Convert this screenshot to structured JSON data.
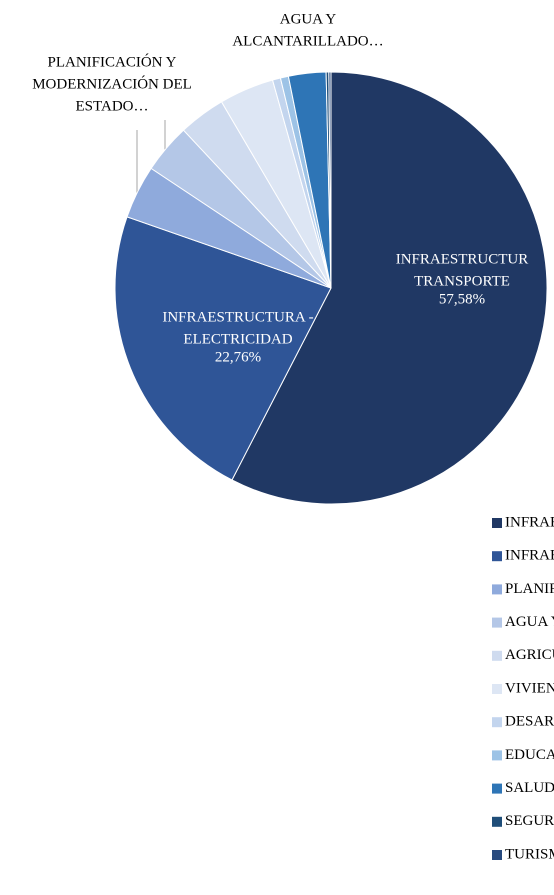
{
  "chart_data": {
    "type": "pie",
    "categories": [
      "INFRAESTRUCTURA-TRANSPORTE",
      "INFRAESTRUCTURA - ELECTRICIDAD",
      "PLANIFICACIÓN Y MODERNIZACIÓN DEL ESTADO",
      "AGUA Y ALCANTARILLADO",
      "AGRICULTURA Y GANADERÍA",
      "VIVIENDA",
      "DESARROLLO SECTOR PRIVADO",
      "EDUCACIÓN",
      "SALUD",
      "SEGURIDAD",
      "TURISMO"
    ],
    "values": [
      57.58,
      22.76,
      4.0,
      3.7,
      3.5,
      4.1,
      0.6,
      0.6,
      2.8,
      0.2,
      0.16
    ],
    "value_labels": [
      "57,58%",
      "22,76%",
      null,
      null,
      null,
      null,
      null,
      null,
      null,
      null,
      null
    ],
    "slice_labels": [
      [
        "INFRAESTRUCTUR",
        "TRANSPORTE"
      ],
      [
        "INFRAESTRUCTURA -",
        "ELECTRICIDAD"
      ],
      [
        "PLANIFICACIÓN Y",
        "MODERNIZACIÓN DEL",
        "ESTADO…"
      ],
      [
        "AGUA Y",
        "ALCANTARILLADO…"
      ],
      null,
      null,
      null,
      null,
      null,
      null,
      null
    ],
    "colors": [
      "#203864",
      "#2f5597",
      "#8faadc",
      "#b4c7e7",
      "#cfdbef",
      "#dde6f4",
      "#c3d5ee",
      "#9dc3e6",
      "#2e75b6",
      "#1f4e79",
      "#284a7e"
    ],
    "legend": "bottom"
  }
}
